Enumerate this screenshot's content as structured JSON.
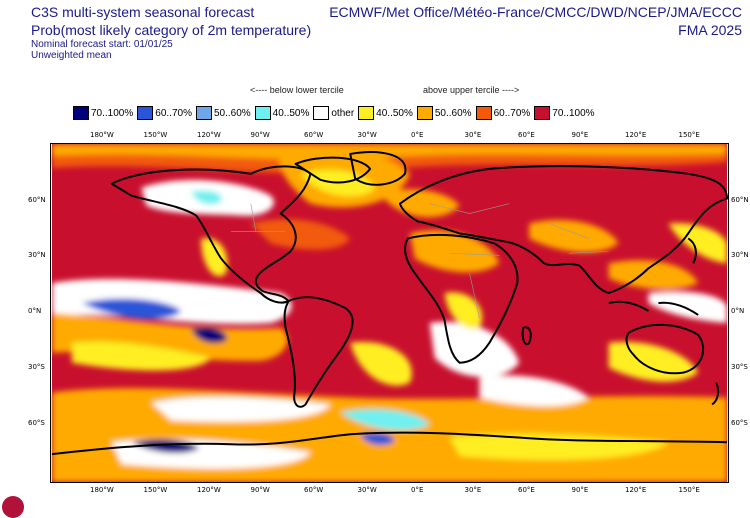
{
  "header": {
    "system_title": "C3S multi-system seasonal forecast",
    "product_title": "Prob(most likely category of 2m temperature)",
    "forecast_start": "Nominal forecast start: 01/01/25",
    "weighting": "Unweighted mean",
    "sources": "ECMWF/Met Office/Météo-France/CMCC/DWD/NCEP/JMA/ECCC",
    "season": "FMA 2025"
  },
  "tercile_notes": {
    "below": "<---- below lower tercile",
    "above": "above upper tercile ---->"
  },
  "legend": [
    {
      "label": "70..100%",
      "color": "#00007a"
    },
    {
      "label": "60..70%",
      "color": "#2a55d8"
    },
    {
      "label": "50..60%",
      "color": "#6fa8e8"
    },
    {
      "label": "40..50%",
      "color": "#6ff0f0"
    },
    {
      "label": "other",
      "color": "#ffffff"
    },
    {
      "label": "40..50%",
      "color": "#ffee22"
    },
    {
      "label": "50..60%",
      "color": "#ffaa00"
    },
    {
      "label": "60..70%",
      "color": "#f25a0a"
    },
    {
      "label": "70..100%",
      "color": "#c8102e"
    }
  ],
  "axes": {
    "lon_labels": [
      "180°W",
      "150°W",
      "120°W",
      "90°W",
      "60°W",
      "30°W",
      "0°E",
      "30°E",
      "60°E",
      "90°E",
      "120°E",
      "150°E"
    ],
    "lat_labels": [
      "60°N",
      "30°N",
      "0°N",
      "30°S",
      "60°S"
    ]
  },
  "colors": {
    "title_text": "#1a1a8c",
    "coastline": "#000000",
    "borders": "#9a9a9a"
  }
}
